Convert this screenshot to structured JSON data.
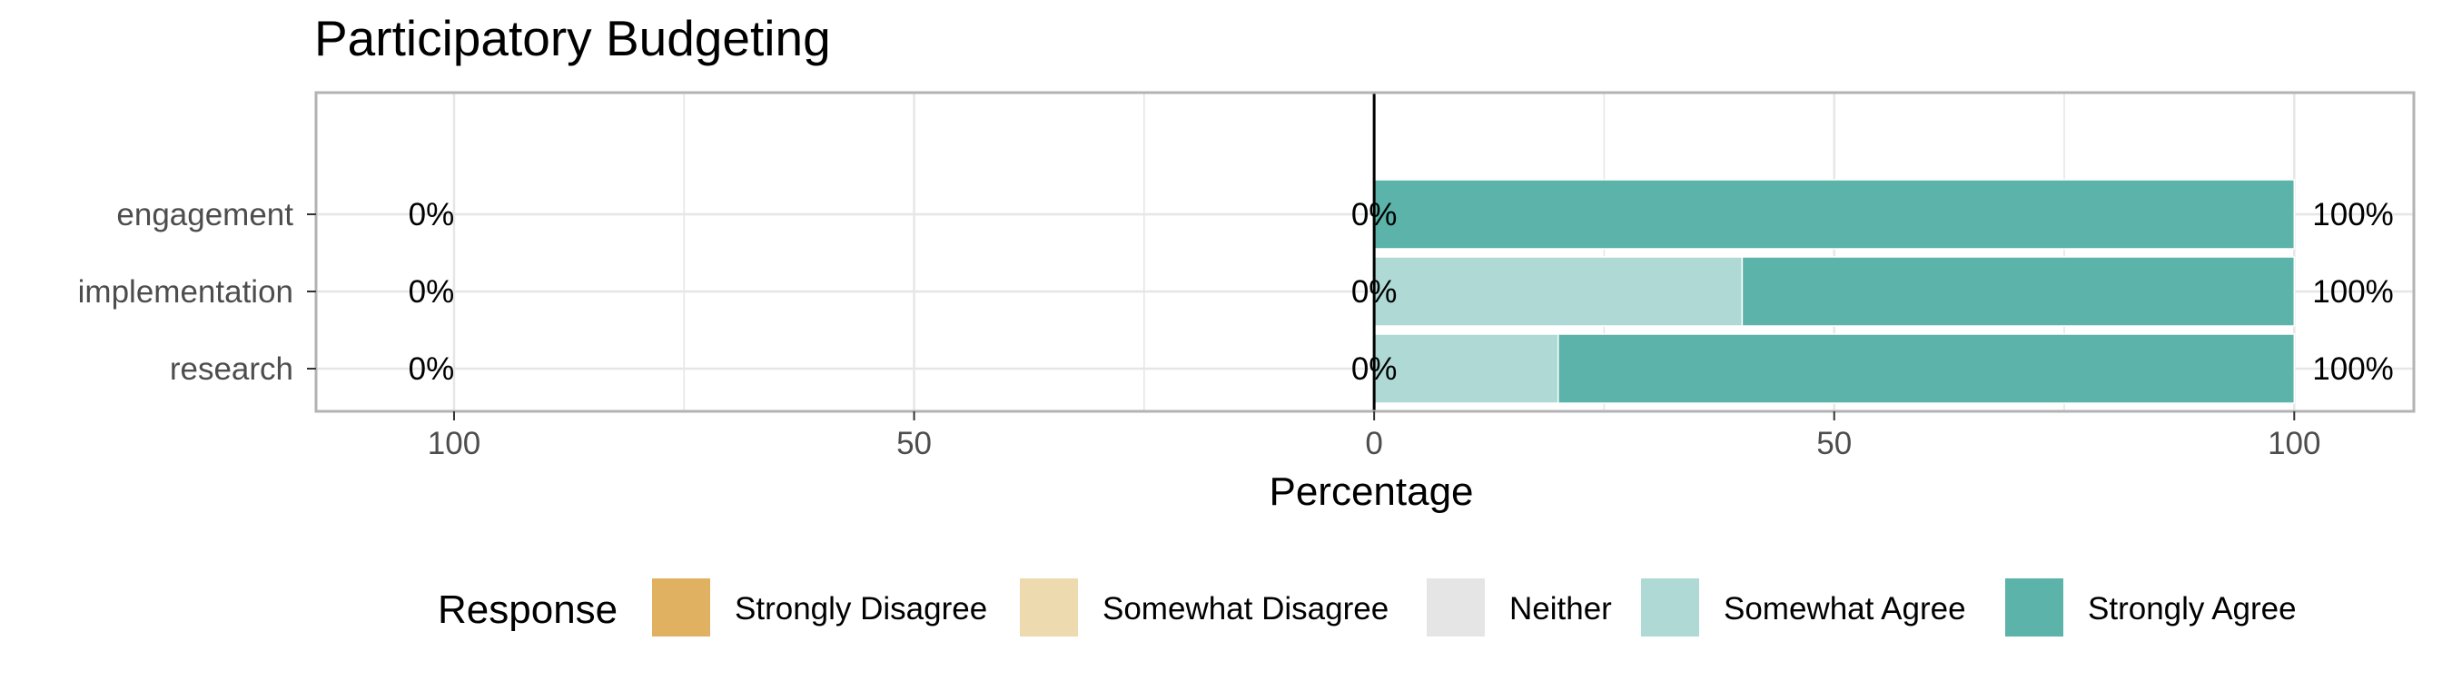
{
  "chart_data": {
    "type": "bar",
    "orientation": "horizontal-diverging-stacked",
    "title": "Participatory Budgeting",
    "xlabel": "Percentage",
    "ylabel": "",
    "xlim": [
      -115,
      113
    ],
    "x_ticks": [
      {
        "value": -100,
        "label": "100"
      },
      {
        "value": -50,
        "label": "50"
      },
      {
        "value": 0,
        "label": "0"
      },
      {
        "value": 50,
        "label": "50"
      },
      {
        "value": 100,
        "label": "100"
      }
    ],
    "grid": true,
    "legend_title": "Response",
    "legend_position": "bottom",
    "categories": [
      "engagement",
      "implementation",
      "research"
    ],
    "series": [
      {
        "name": "Strongly Disagree",
        "color": "#DFB160",
        "values": [
          0,
          0,
          0
        ]
      },
      {
        "name": "Somewhat Disagree",
        "color": "#EEDAAF",
        "values": [
          0,
          0,
          0
        ]
      },
      {
        "name": "Neither",
        "color": "#E5E5E5",
        "values": [
          0,
          0,
          0
        ]
      },
      {
        "name": "Somewhat Agree",
        "color": "#AFD9D5",
        "values": [
          0,
          40,
          20
        ]
      },
      {
        "name": "Strongly Agree",
        "color": "#5BB3A9",
        "values": [
          100,
          60,
          80
        ]
      }
    ],
    "labels_left": [
      "0%",
      "0%",
      "0%"
    ],
    "labels_center": [
      "0%",
      "0%",
      "0%"
    ],
    "labels_right": [
      "100%",
      "100%",
      "100%"
    ]
  }
}
